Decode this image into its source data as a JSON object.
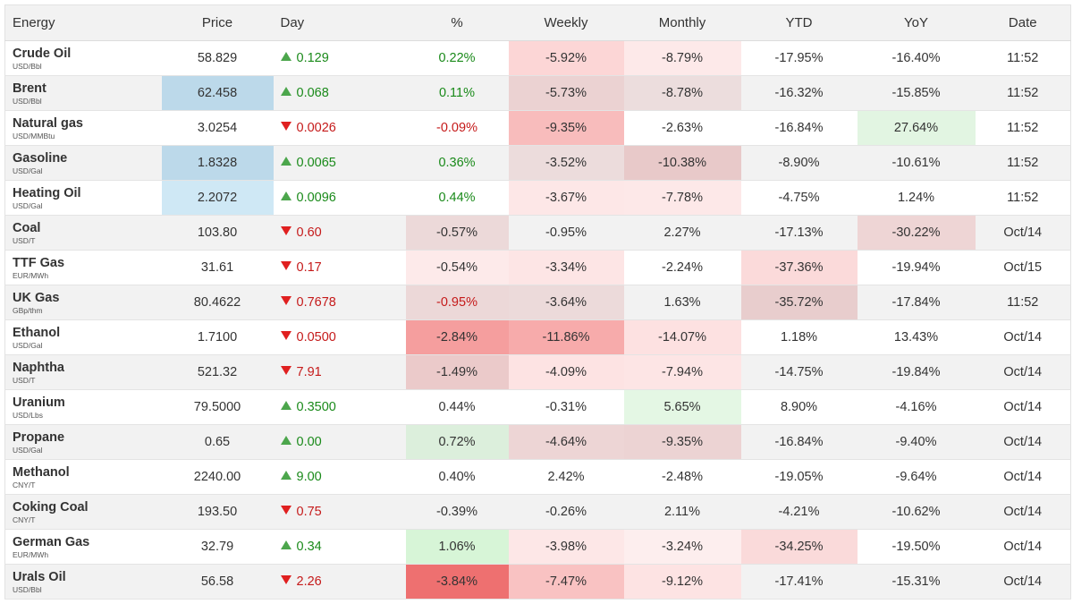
{
  "table": {
    "header": [
      "Energy",
      "Price",
      "Day",
      "%",
      "Weekly",
      "Monthly",
      "YTD",
      "YoY",
      "Date"
    ],
    "rows": [
      {
        "name": "Crude Oil",
        "unit": "USD/Bbl",
        "price": "58.829",
        "day_direction": "up",
        "day": "0.129",
        "pct": "0.22%",
        "weekly": "-5.92%",
        "monthly": "-8.79%",
        "ytd": "-17.95%",
        "yoy": "-16.40%",
        "date": "11:52"
      },
      {
        "name": "Brent",
        "unit": "USD/Bbl",
        "price": "62.458",
        "day_direction": "up",
        "day": "0.068",
        "pct": "0.11%",
        "weekly": "-5.73%",
        "monthly": "-8.78%",
        "ytd": "-16.32%",
        "yoy": "-15.85%",
        "date": "11:52"
      },
      {
        "name": "Natural gas",
        "unit": "USD/MMBtu",
        "price": "3.0254",
        "day_direction": "down",
        "day": "0.0026",
        "pct": "-0.09%",
        "weekly": "-9.35%",
        "monthly": "-2.63%",
        "ytd": "-16.84%",
        "yoy": "27.64%",
        "date": "11:52"
      },
      {
        "name": "Gasoline",
        "unit": "USD/Gal",
        "price": "1.8328",
        "day_direction": "up",
        "day": "0.0065",
        "pct": "0.36%",
        "weekly": "-3.52%",
        "monthly": "-10.38%",
        "ytd": "-8.90%",
        "yoy": "-10.61%",
        "date": "11:52"
      },
      {
        "name": "Heating Oil",
        "unit": "USD/Gal",
        "price": "2.2072",
        "day_direction": "up",
        "day": "0.0096",
        "pct": "0.44%",
        "weekly": "-3.67%",
        "monthly": "-7.78%",
        "ytd": "-4.75%",
        "yoy": "1.24%",
        "date": "11:52"
      },
      {
        "name": "Coal",
        "unit": "USD/T",
        "price": "103.80",
        "day_direction": "down",
        "day": "0.60",
        "pct": "-0.57%",
        "weekly": "-0.95%",
        "monthly": "2.27%",
        "ytd": "-17.13%",
        "yoy": "-30.22%",
        "date": "Oct/14"
      },
      {
        "name": "TTF Gas",
        "unit": "EUR/MWh",
        "price": "31.61",
        "day_direction": "down",
        "day": "0.17",
        "pct": "-0.54%",
        "weekly": "-3.34%",
        "monthly": "-2.24%",
        "ytd": "-37.36%",
        "yoy": "-19.94%",
        "date": "Oct/15"
      },
      {
        "name": "UK Gas",
        "unit": "GBp/thm",
        "price": "80.4622",
        "day_direction": "down",
        "day": "0.7678",
        "pct": "-0.95%",
        "weekly": "-3.64%",
        "monthly": "1.63%",
        "ytd": "-35.72%",
        "yoy": "-17.84%",
        "date": "11:52"
      },
      {
        "name": "Ethanol",
        "unit": "USD/Gal",
        "price": "1.7100",
        "day_direction": "down",
        "day": "0.0500",
        "pct": "-2.84%",
        "weekly": "-11.86%",
        "monthly": "-14.07%",
        "ytd": "1.18%",
        "yoy": "13.43%",
        "date": "Oct/14"
      },
      {
        "name": "Naphtha",
        "unit": "USD/T",
        "price": "521.32",
        "day_direction": "down",
        "day": "7.91",
        "pct": "-1.49%",
        "weekly": "-4.09%",
        "monthly": "-7.94%",
        "ytd": "-14.75%",
        "yoy": "-19.84%",
        "date": "Oct/14"
      },
      {
        "name": "Uranium",
        "unit": "USD/Lbs",
        "price": "79.5000",
        "day_direction": "up",
        "day": "0.3500",
        "pct": "0.44%",
        "weekly": "-0.31%",
        "monthly": "5.65%",
        "ytd": "8.90%",
        "yoy": "-4.16%",
        "date": "Oct/14"
      },
      {
        "name": "Propane",
        "unit": "USD/Gal",
        "price": "0.65",
        "day_direction": "up",
        "day": "0.00",
        "pct": "0.72%",
        "weekly": "-4.64%",
        "monthly": "-9.35%",
        "ytd": "-16.84%",
        "yoy": "-9.40%",
        "date": "Oct/14"
      },
      {
        "name": "Methanol",
        "unit": "CNY/T",
        "price": "2240.00",
        "day_direction": "up",
        "day": "9.00",
        "pct": "0.40%",
        "weekly": "2.42%",
        "monthly": "-2.48%",
        "ytd": "-19.05%",
        "yoy": "-9.64%",
        "date": "Oct/14"
      },
      {
        "name": "Coking Coal",
        "unit": "CNY/T",
        "price": "193.50",
        "day_direction": "down",
        "day": "0.75",
        "pct": "-0.39%",
        "weekly": "-0.26%",
        "monthly": "2.11%",
        "ytd": "-4.21%",
        "yoy": "-10.62%",
        "date": "Oct/14"
      },
      {
        "name": "German Gas",
        "unit": "EUR/MWh",
        "price": "32.79",
        "day_direction": "up",
        "day": "0.34",
        "pct": "1.06%",
        "weekly": "-3.98%",
        "monthly": "-3.24%",
        "ytd": "-34.25%",
        "yoy": "-19.50%",
        "date": "Oct/14"
      },
      {
        "name": "Urals Oil",
        "unit": "USD/Bbl",
        "price": "56.58",
        "day_direction": "down",
        "day": "2.26",
        "pct": "-3.84%",
        "weekly": "-7.47%",
        "monthly": "-9.12%",
        "ytd": "-17.41%",
        "yoy": "-15.31%",
        "date": "Oct/14"
      }
    ]
  }
}
